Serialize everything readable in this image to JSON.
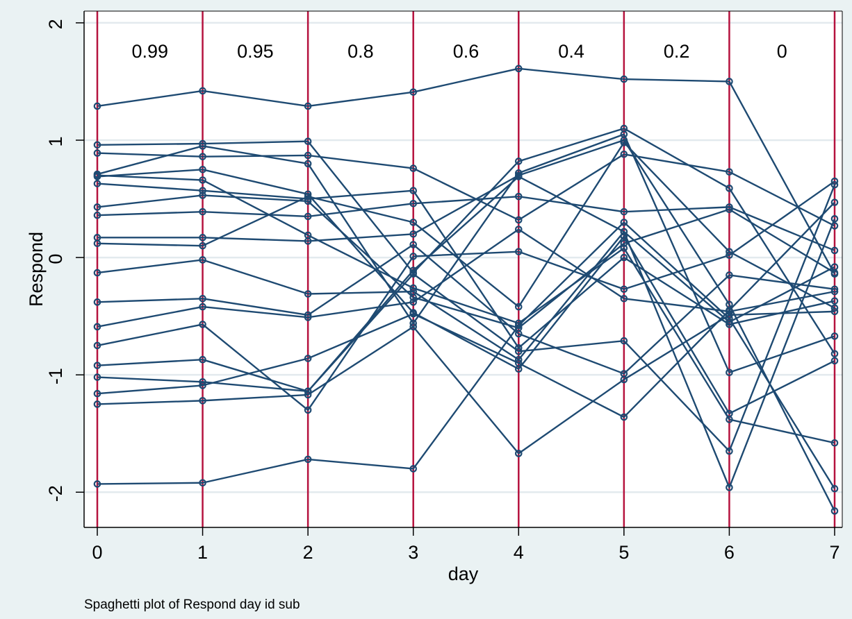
{
  "chart_data": {
    "type": "line",
    "title": "",
    "xlabel": "day",
    "ylabel": "Respond",
    "note": "Spaghetti plot of Respond day id sub",
    "x": [
      0,
      1,
      2,
      3,
      4,
      5,
      6,
      7
    ],
    "xlim": [
      0,
      7
    ],
    "ylim": [
      -2.3,
      2.1
    ],
    "xticks": [
      "0",
      "1",
      "2",
      "3",
      "4",
      "5",
      "6",
      "7"
    ],
    "yticks": [
      "-2",
      "-1",
      "0",
      "1",
      "2"
    ],
    "ytick_values": [
      -2,
      -1,
      0,
      1,
      2
    ],
    "grid": true,
    "reference_lines_x": [
      0,
      1,
      2,
      3,
      4,
      5,
      6,
      7
    ],
    "panel_labels": [
      "0.99",
      "0.95",
      "0.8",
      "0.6",
      "0.4",
      "0.2",
      "0"
    ],
    "colors": {
      "background": "#eaf2f3",
      "plot_area": "#ffffff",
      "series_line": "#1e4a72",
      "reference_line": "#b5123e",
      "grid": "#e3eaee"
    },
    "series": [
      {
        "values": [
          1.29,
          1.42,
          1.29,
          1.41,
          1.61,
          1.52,
          1.5,
          -0.14
        ]
      },
      {
        "values": [
          0.96,
          0.97,
          0.99,
          -0.13,
          0.82,
          1.1,
          0.59,
          -0.82
        ]
      },
      {
        "values": [
          0.89,
          0.86,
          0.87,
          0.76,
          0.32,
          0.88,
          0.73,
          0.27
        ]
      },
      {
        "values": [
          0.71,
          0.95,
          0.8,
          -0.56,
          0.72,
          1.05,
          -0.98,
          -0.67
        ]
      },
      {
        "values": [
          0.69,
          0.75,
          0.54,
          -0.47,
          -0.95,
          0.18,
          -1.33,
          -0.88
        ]
      },
      {
        "values": [
          0.7,
          0.66,
          0.19,
          -0.26,
          -0.56,
          0.08,
          -1.38,
          -1.58
        ]
      },
      {
        "values": [
          0.63,
          0.57,
          0.5,
          0.57,
          -0.77,
          0.0,
          -0.57,
          -0.37
        ]
      },
      {
        "values": [
          0.43,
          0.53,
          0.48,
          -0.34,
          -0.6,
          0.12,
          0.41,
          -0.13
        ]
      },
      {
        "values": [
          0.36,
          0.39,
          0.35,
          0.46,
          0.52,
          0.39,
          0.43,
          0.06
        ]
      },
      {
        "values": [
          0.17,
          0.17,
          0.14,
          0.2,
          0.7,
          1.0,
          -0.4,
          -2.16
        ]
      },
      {
        "values": [
          0.12,
          0.1,
          0.52,
          0.3,
          -0.42,
          0.98,
          0.05,
          -0.43
        ]
      },
      {
        "values": [
          -0.13,
          -0.02,
          -0.31,
          -0.29,
          -0.87,
          0.22,
          -0.55,
          -0.08
        ]
      },
      {
        "values": [
          -0.38,
          -0.35,
          -0.49,
          0.11,
          -0.65,
          -0.99,
          -0.15,
          -0.27
        ]
      },
      {
        "values": [
          -0.59,
          -0.42,
          -0.51,
          -0.38,
          0.24,
          -0.35,
          -0.46,
          -0.29
        ]
      },
      {
        "values": [
          -0.75,
          -0.57,
          -1.3,
          0.01,
          0.05,
          -0.27,
          0.02,
          0.65
        ]
      },
      {
        "values": [
          -0.92,
          -0.87,
          -1.14,
          -0.14,
          -0.8,
          -0.71,
          -1.65,
          0.62
        ]
      },
      {
        "values": [
          -1.02,
          -1.06,
          -1.14,
          -0.11,
          0.69,
          0.22,
          -1.96,
          0.33
        ]
      },
      {
        "values": [
          -1.16,
          -1.09,
          -0.86,
          -0.48,
          -0.9,
          -1.36,
          -0.45,
          0.47
        ]
      },
      {
        "values": [
          -1.25,
          -1.22,
          -1.17,
          -0.59,
          -1.67,
          -1.04,
          -0.49,
          -0.46
        ]
      },
      {
        "values": [
          -1.93,
          -1.92,
          -1.72,
          -1.8,
          -0.58,
          0.3,
          -0.52,
          -1.97
        ]
      }
    ]
  }
}
